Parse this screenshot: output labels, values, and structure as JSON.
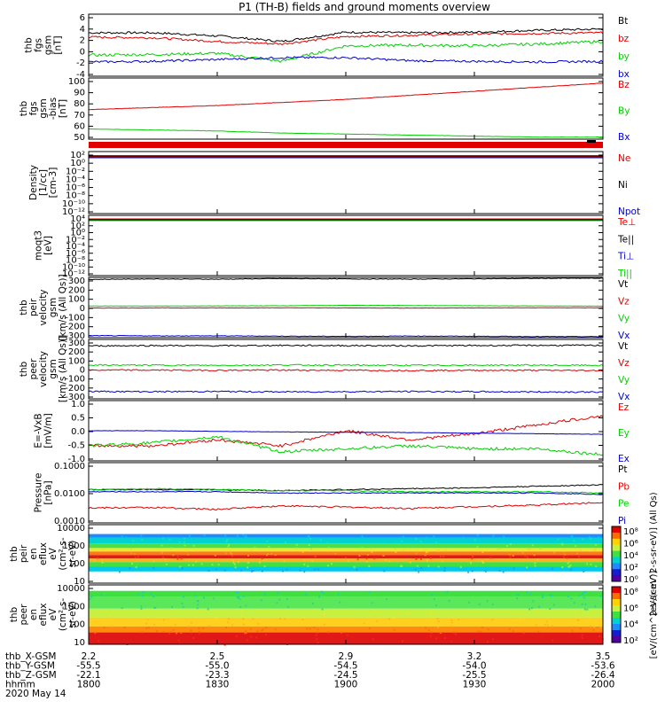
{
  "title": "P1 (TH-B) fields and ground moments overview",
  "colors": {
    "black": "#000000",
    "red": "#e00000",
    "green": "#00d000",
    "blue": "#0000d0"
  },
  "panels": [
    {
      "id": "fgs-small",
      "ylabel": [
        "thb",
        "fgs",
        "gsm",
        "[nT]"
      ],
      "yticks": [
        "6",
        "4",
        "2",
        "0",
        "-2",
        "-4"
      ],
      "legend": [
        {
          "t": "Bt",
          "c": "#000000"
        },
        {
          "t": "bz",
          "c": "#e00000"
        },
        {
          "t": "by",
          "c": "#00d000"
        },
        {
          "t": "bx",
          "c": "#0000d0"
        }
      ]
    },
    {
      "id": "fgs-large",
      "ylabel": [
        "thb",
        "fgs",
        "gsm",
        "-bias",
        "[nT]"
      ],
      "yticks": [
        "100",
        "90",
        "80",
        "70",
        "60",
        "50"
      ],
      "legend": [
        {
          "t": "Bz",
          "c": "#e00000"
        },
        {
          "t": "By",
          "c": "#00d000"
        },
        {
          "t": "Bx",
          "c": "#0000d0"
        }
      ]
    },
    {
      "id": "density",
      "ylabel": [
        "Density",
        "[1/cc]",
        "[cm-3]"
      ],
      "yticks": [
        "10²",
        "10⁰",
        "10⁻²",
        "10⁻⁴",
        "10⁻⁶",
        "10⁻⁸",
        "10⁻¹⁰",
        "10⁻¹²"
      ],
      "legend": [
        {
          "t": "Ne",
          "c": "#e00000"
        },
        {
          "t": "Ni",
          "c": "#000000"
        },
        {
          "t": "Npot",
          "c": "#0000d0"
        }
      ]
    },
    {
      "id": "temp",
      "ylabel": [
        "moqt3",
        "[eV]"
      ],
      "yticks": [
        "10⁴",
        "10²",
        "10⁰",
        "10⁻²",
        "10⁻⁴",
        "10⁻⁶",
        "10⁻⁸",
        "10⁻¹⁰",
        "10⁻¹²"
      ],
      "legend": [
        {
          "t": "Te⊥",
          "c": "#e00000"
        },
        {
          "t": "Te||",
          "c": "#000000"
        },
        {
          "t": "Ti⊥",
          "c": "#0000d0"
        },
        {
          "t": "Ti||",
          "c": "#00d000"
        }
      ]
    },
    {
      "id": "ion-vel",
      "ylabel": [
        "thb",
        "peir",
        "velocity",
        "gsm",
        "[km/s (All Qs)]"
      ],
      "yticks": [
        "300",
        "200",
        "100",
        "0",
        "-100",
        "-200",
        "-300"
      ],
      "legend": [
        {
          "t": "Vt",
          "c": "#000000"
        },
        {
          "t": "Vz",
          "c": "#e00000"
        },
        {
          "t": "Vy",
          "c": "#00d000"
        },
        {
          "t": "Vx",
          "c": "#0000d0"
        }
      ]
    },
    {
      "id": "ele-vel",
      "ylabel": [
        "thb",
        "peer",
        "velocity",
        "gsm",
        "[km/s (All Qs)]"
      ],
      "yticks": [
        "300",
        "200",
        "100",
        "0",
        "-100",
        "-200",
        "-300"
      ],
      "legend": [
        {
          "t": "Vt",
          "c": "#000000"
        },
        {
          "t": "Vz",
          "c": "#e00000"
        },
        {
          "t": "Vy",
          "c": "#00d000"
        },
        {
          "t": "Vx",
          "c": "#0000d0"
        }
      ]
    },
    {
      "id": "efield",
      "ylabel": [
        "E=-VxB",
        "[mV/m]"
      ],
      "yticks": [
        "1.0",
        "0.5",
        "0.0",
        "-0.5",
        "-1.0"
      ],
      "legend": [
        {
          "t": "Ez",
          "c": "#e00000"
        },
        {
          "t": "Ey",
          "c": "#00d000"
        },
        {
          "t": "Ex",
          "c": "#0000d0"
        }
      ]
    },
    {
      "id": "pressure",
      "ylabel": [
        "Pressure",
        "[nPa]"
      ],
      "yticks": [
        "0.1000",
        "0.0100",
        "0.0010"
      ],
      "legend": [
        {
          "t": "Pt",
          "c": "#000000"
        },
        {
          "t": "Pb",
          "c": "#e00000"
        },
        {
          "t": "Pe",
          "c": "#00d000"
        },
        {
          "t": "Pi",
          "c": "#0000d0"
        }
      ]
    },
    {
      "id": "ion-spec",
      "ylabel": [
        "thb",
        "peir",
        "en",
        "eflux",
        "eV",
        "(cm²-s-",
        "sr-eV)"
      ],
      "yticks": [
        "10000",
        "1000",
        "100",
        "10"
      ],
      "cbar": [
        "10⁸",
        "10⁶",
        "10⁴",
        "10²",
        "10⁰"
      ],
      "cbar_label": "[eV/(cm^2-s-sr-eV)] (All Qs)"
    },
    {
      "id": "ele-spec",
      "ylabel": [
        "thb",
        "peer",
        "en",
        "eflux",
        "eV",
        "(cm²-s-",
        "sr-eV)"
      ],
      "yticks": [
        "10000",
        "1000",
        "100",
        "10"
      ],
      "cbar": [
        "10⁸",
        "10⁶",
        "10⁴",
        "10²"
      ],
      "cbar_label": "[eV/(cm^2-s-sr-eV)]"
    }
  ],
  "ephemeris": {
    "labels": [
      "thb_X-GSM",
      "thb_Y-GSM",
      "thb_Z-GSM",
      "hhmm",
      "2020 May 14"
    ],
    "columns": [
      [
        "2.2",
        "-55.5",
        "-22.1",
        "1800"
      ],
      [
        "2.5",
        "-55.0",
        "-23.3",
        "1830"
      ],
      [
        "2.9",
        "-54.5",
        "-24.5",
        "1900"
      ],
      [
        "3.2",
        "-54.0",
        "-25.5",
        "1930"
      ],
      [
        "3.5",
        "-53.6",
        "-26.4",
        "2000"
      ]
    ]
  },
  "chart_data": {
    "type": "line",
    "time_range": [
      "18:00",
      "20:00"
    ],
    "date": "2020 May 14",
    "series_summary": [
      {
        "panel": "fgs-small",
        "ylim": [
          -4,
          6
        ],
        "Bt": [
          3.0,
          3.0,
          2.5,
          1.6,
          3.1,
          3.0,
          3.1,
          3.4,
          3.6
        ],
        "bz": [
          2.3,
          2.2,
          1.6,
          1.2,
          2.4,
          2.6,
          2.8,
          2.9,
          3.0
        ],
        "by": [
          -0.6,
          -0.5,
          -0.3,
          -1.6,
          0.9,
          1.0,
          0.9,
          1.2,
          1.6
        ],
        "bx": [
          -1.7,
          -1.6,
          -1.3,
          -1.0,
          -1.0,
          -1.5,
          -1.6,
          -1.7,
          -1.6
        ]
      },
      {
        "panel": "fgs-large",
        "ylim": [
          43,
          103
        ],
        "Bz": [
          72,
          74,
          76,
          79,
          82,
          86,
          90,
          94,
          98
        ],
        "By": [
          53,
          52,
          51,
          49,
          48,
          47,
          46,
          45,
          45
        ]
      },
      {
        "panel": "efield",
        "ylim": [
          -1.0,
          1.0
        ],
        "Ez": [
          -0.5,
          -0.5,
          -0.3,
          -0.5,
          0.0,
          -0.3,
          -0.1,
          0.2,
          0.5
        ],
        "Ey": [
          -0.5,
          -0.4,
          -0.2,
          -0.7,
          -0.6,
          -0.5,
          -0.6,
          -0.6,
          -0.8
        ],
        "Ex": [
          0.0,
          0.0,
          -0.02,
          -0.04,
          -0.05,
          -0.06,
          -0.08,
          -0.1,
          -0.12
        ]
      },
      {
        "panel": "pressure",
        "ylim": [
          0.0007,
          0.12
        ],
        "Pt": [
          0.012,
          0.012,
          0.012,
          0.011,
          0.012,
          0.013,
          0.014,
          0.016,
          0.018
        ],
        "Pe": [
          0.012,
          0.013,
          0.012,
          0.011,
          0.011,
          0.01,
          0.01,
          0.01,
          0.009
        ],
        "Pi": [
          0.01,
          0.01,
          0.01,
          0.009,
          0.009,
          0.009,
          0.009,
          0.009,
          0.008
        ],
        "Pb": [
          0.0025,
          0.0026,
          0.0022,
          0.003,
          0.0027,
          0.0024,
          0.0028,
          0.0032,
          0.004
        ]
      }
    ]
  }
}
